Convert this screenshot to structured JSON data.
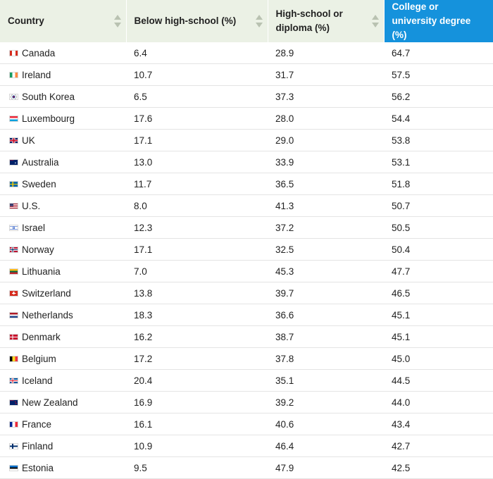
{
  "table": {
    "headers": [
      {
        "label": "Country",
        "sortable": true
      },
      {
        "label": "Below high-school (%)",
        "sortable": true
      },
      {
        "label": "High-school or diploma (%)",
        "sortable": true
      },
      {
        "label": "College or university degree (%)",
        "sortable": false,
        "active": true
      }
    ],
    "rows": [
      {
        "country": "Canada",
        "flag": "canada-flag-icon",
        "below_hs": "6.4",
        "hs_diploma": "28.9",
        "college": "64.7"
      },
      {
        "country": "Ireland",
        "flag": "ireland-flag-icon",
        "below_hs": "10.7",
        "hs_diploma": "31.7",
        "college": "57.5"
      },
      {
        "country": "South Korea",
        "flag": "south-korea-flag-icon",
        "below_hs": "6.5",
        "hs_diploma": "37.3",
        "college": "56.2"
      },
      {
        "country": "Luxembourg",
        "flag": "luxembourg-flag-icon",
        "below_hs": "17.6",
        "hs_diploma": "28.0",
        "college": "54.4"
      },
      {
        "country": "UK",
        "flag": "uk-flag-icon",
        "below_hs": "17.1",
        "hs_diploma": "29.0",
        "college": "53.8"
      },
      {
        "country": "Australia",
        "flag": "australia-flag-icon",
        "below_hs": "13.0",
        "hs_diploma": "33.9",
        "college": "53.1"
      },
      {
        "country": "Sweden",
        "flag": "sweden-flag-icon",
        "below_hs": "11.7",
        "hs_diploma": "36.5",
        "college": "51.8"
      },
      {
        "country": "U.S.",
        "flag": "us-flag-icon",
        "below_hs": "8.0",
        "hs_diploma": "41.3",
        "college": "50.7"
      },
      {
        "country": "Israel",
        "flag": "israel-flag-icon",
        "below_hs": "12.3",
        "hs_diploma": "37.2",
        "college": "50.5"
      },
      {
        "country": "Norway",
        "flag": "norway-flag-icon",
        "below_hs": "17.1",
        "hs_diploma": "32.5",
        "college": "50.4"
      },
      {
        "country": "Lithuania",
        "flag": "lithuania-flag-icon",
        "below_hs": "7.0",
        "hs_diploma": "45.3",
        "college": "47.7"
      },
      {
        "country": "Switzerland",
        "flag": "switzerland-flag-icon",
        "below_hs": "13.8",
        "hs_diploma": "39.7",
        "college": "46.5"
      },
      {
        "country": "Netherlands",
        "flag": "netherlands-flag-icon",
        "below_hs": "18.3",
        "hs_diploma": "36.6",
        "college": "45.1"
      },
      {
        "country": "Denmark",
        "flag": "denmark-flag-icon",
        "below_hs": "16.2",
        "hs_diploma": "38.7",
        "college": "45.1"
      },
      {
        "country": "Belgium",
        "flag": "belgium-flag-icon",
        "below_hs": "17.2",
        "hs_diploma": "37.8",
        "college": "45.0"
      },
      {
        "country": "Iceland",
        "flag": "iceland-flag-icon",
        "below_hs": "20.4",
        "hs_diploma": "35.1",
        "college": "44.5"
      },
      {
        "country": "New Zealand",
        "flag": "new-zealand-flag-icon",
        "below_hs": "16.9",
        "hs_diploma": "39.2",
        "college": "44.0"
      },
      {
        "country": "France",
        "flag": "france-flag-icon",
        "below_hs": "16.1",
        "hs_diploma": "40.6",
        "college": "43.4"
      },
      {
        "country": "Finland",
        "flag": "finland-flag-icon",
        "below_hs": "10.9",
        "hs_diploma": "46.4",
        "college": "42.7"
      },
      {
        "country": "Estonia",
        "flag": "estonia-flag-icon",
        "below_hs": "9.5",
        "hs_diploma": "47.9",
        "college": "42.5"
      }
    ]
  },
  "colors": {
    "header_bg": "#ebf1e5",
    "active_header_bg": "#1592dc",
    "row_divider": "#e4e4e4"
  }
}
